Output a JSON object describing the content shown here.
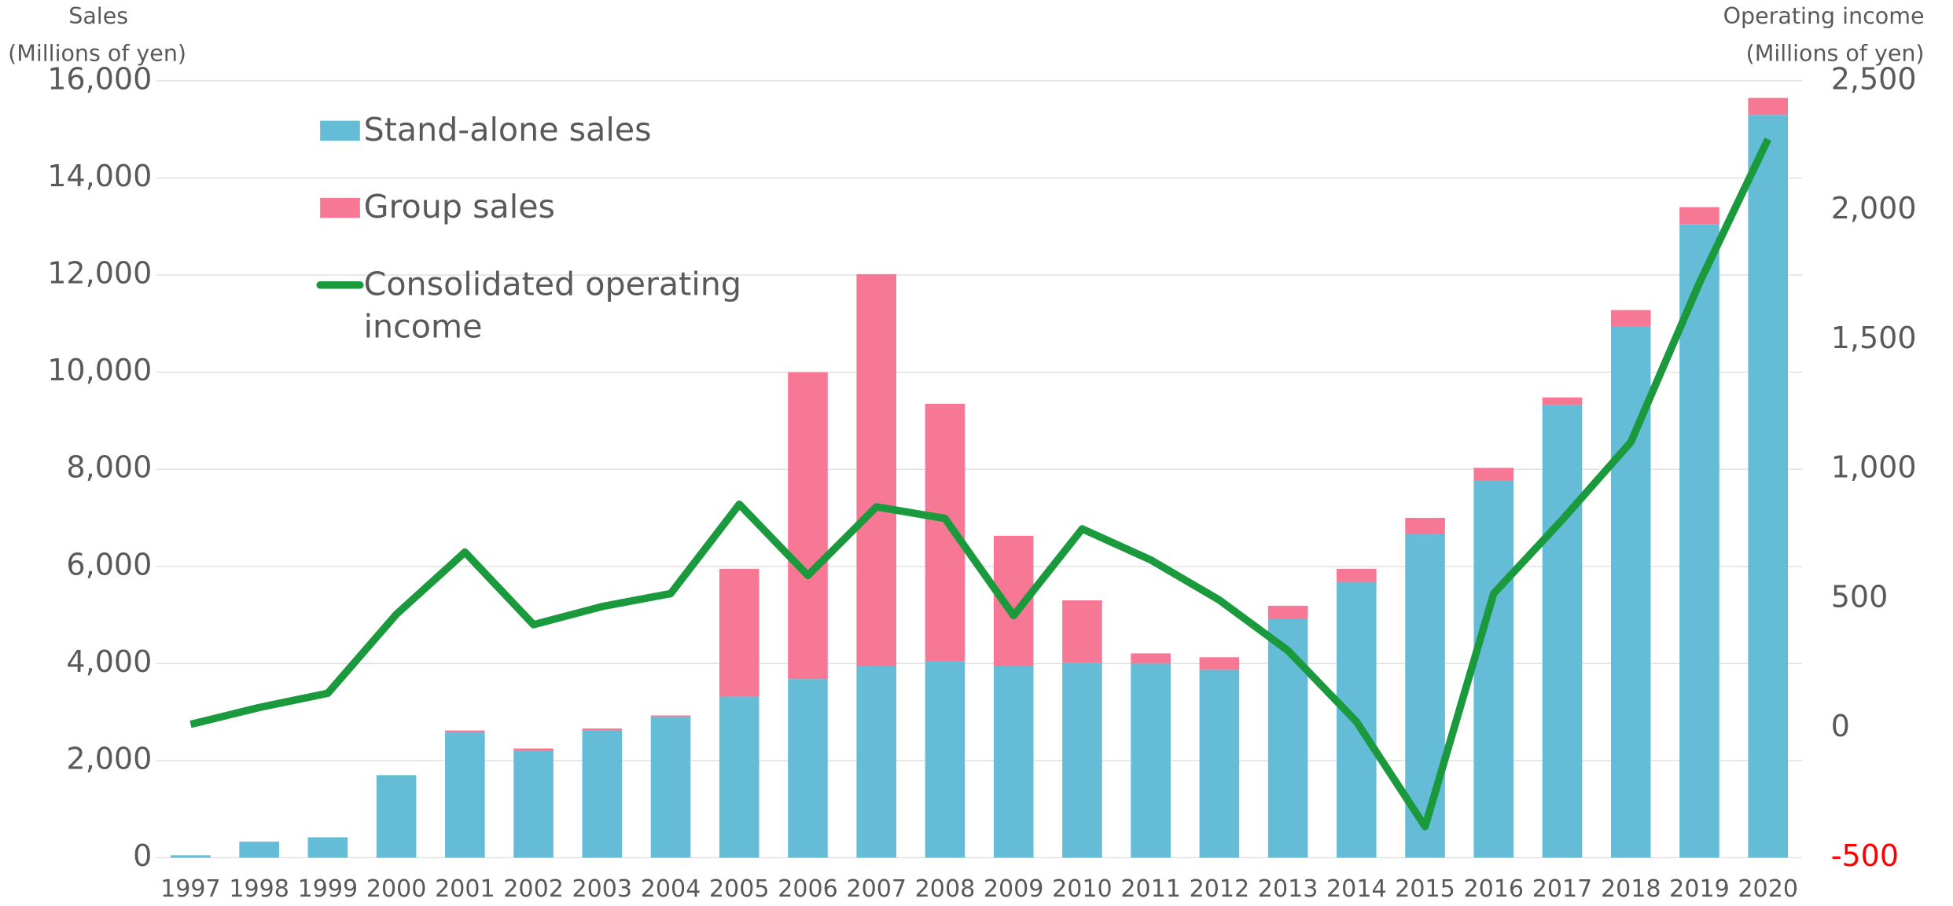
{
  "chart_data": {
    "type": "bar",
    "y_axis_label": [
      "Sales",
      "(Millions of yen)"
    ],
    "y2_axis_label": [
      "Operating income",
      "(Millions of yen)"
    ],
    "categories": [
      "1997",
      "1998",
      "1999",
      "2000",
      "2001",
      "2002",
      "2003",
      "2004",
      "2005",
      "2006",
      "2007",
      "2008",
      "2009",
      "2010",
      "2011",
      "2012",
      "2013",
      "2014",
      "2015",
      "2016",
      "2017",
      "2018",
      "2019",
      "2020"
    ],
    "stacked": true,
    "series": [
      {
        "name": "Stand-alone sales",
        "color": "#65bcd6",
        "type": "bar",
        "values": [
          50,
          330,
          420,
          1700,
          2580,
          2200,
          2620,
          2900,
          3320,
          3680,
          3950,
          4040,
          3950,
          4020,
          4000,
          3870,
          4920,
          5680,
          6660,
          7760,
          9320,
          10950,
          13050,
          15300
        ]
      },
      {
        "name": "Group sales",
        "color": "#f77895",
        "type": "bar",
        "values": [
          0,
          0,
          0,
          0,
          40,
          50,
          40,
          30,
          2630,
          6320,
          8070,
          5310,
          2680,
          1280,
          210,
          260,
          270,
          270,
          340,
          270,
          160,
          330,
          350,
          350
        ]
      },
      {
        "name": "Consolidated operating income",
        "color": "#1a9a3c",
        "type": "line",
        "axis": "y2",
        "values": [
          15,
          80,
          135,
          440,
          680,
          400,
          470,
          520,
          865,
          590,
          855,
          810,
          435,
          770,
          650,
          495,
          300,
          25,
          -380,
          520,
          805,
          1105,
          1720,
          2275
        ]
      }
    ],
    "ylim": [
      0,
      16000
    ],
    "yticks": [
      0,
      {
        "value": 2000,
        "label": "2,000"
      },
      {
        "value": 4000,
        "label": "4,000"
      },
      {
        "value": 6000,
        "label": "6,000"
      },
      {
        "value": 8000,
        "label": "8,000"
      },
      {
        "value": 10000,
        "label": "10,000"
      },
      {
        "value": 12000,
        "label": "12,000"
      },
      {
        "value": 14000,
        "label": "14,000"
      },
      {
        "value": 16000,
        "label": "16,000"
      }
    ],
    "y2lim": [
      -500,
      2500
    ],
    "y2ticks": [
      -500,
      0,
      500,
      {
        "value": 1000,
        "label": "1,000"
      },
      {
        "value": 1500,
        "label": "1,500"
      },
      {
        "value": 2000,
        "label": "2,000"
      },
      {
        "value": 2500,
        "label": "2,500"
      }
    ],
    "negative_tick_color": "#ff0000",
    "grid": true,
    "legend": "upper left"
  }
}
